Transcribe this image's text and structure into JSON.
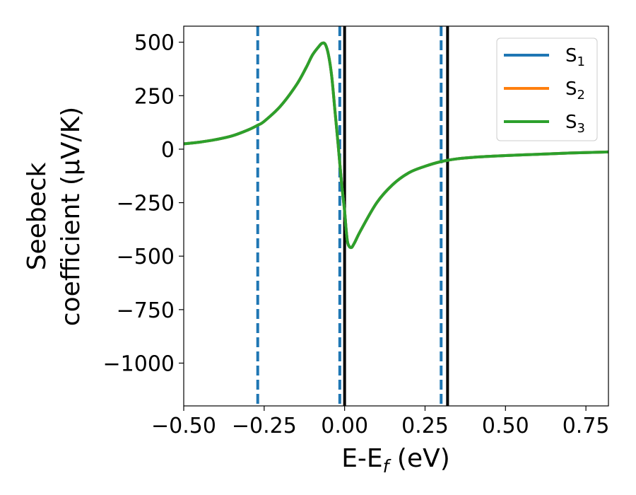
{
  "chart_data": {
    "type": "line",
    "xlabel": "E-E",
    "xlabel_sub": "f",
    "xlabel_unit": " (eV)",
    "ylabel_line1": "Seebeck",
    "ylabel_line2": "coefficient  (μV/K)",
    "xlim": [
      -0.5,
      0.82
    ],
    "ylim": [
      -1200,
      575
    ],
    "xticks": [
      -0.5,
      -0.25,
      0.0,
      0.25,
      0.5,
      0.75
    ],
    "xtick_labels": [
      "−0.50",
      "−0.25",
      "0.00",
      "0.25",
      "0.50",
      "0.75"
    ],
    "yticks": [
      500,
      250,
      0,
      -250,
      -500,
      -750,
      -1000
    ],
    "ytick_labels": [
      "500",
      "250",
      "0",
      "−250",
      "−500",
      "−750",
      "−1000"
    ],
    "grid": false,
    "legend_position": "top-right",
    "x": [
      -0.5,
      -0.45,
      -0.4,
      -0.35,
      -0.3,
      -0.27,
      -0.25,
      -0.2,
      -0.15,
      -0.12,
      -0.1,
      -0.08,
      -0.07,
      -0.06,
      -0.05,
      -0.04,
      -0.03,
      -0.02,
      -0.01,
      0.0,
      0.005,
      0.01,
      0.02,
      0.03,
      0.05,
      0.1,
      0.15,
      0.2,
      0.25,
      0.3,
      0.35,
      0.4,
      0.5,
      0.6,
      0.7,
      0.82
    ],
    "series": [
      {
        "name": "S",
        "sub": "1",
        "color": "#1f77b4",
        "values": [
          25,
          33,
          45,
          62,
          90,
          112,
          130,
          200,
          300,
          380,
          440,
          480,
          495,
          490,
          440,
          340,
          180,
          20,
          -150,
          -290,
          -380,
          -440,
          -460,
          -440,
          -380,
          -250,
          -165,
          -110,
          -80,
          -58,
          -45,
          -38,
          -30,
          -24,
          -18,
          -13
        ]
      },
      {
        "name": "S",
        "sub": "2",
        "color": "#ff7f0e",
        "values": [
          25,
          33,
          45,
          62,
          90,
          112,
          130,
          200,
          300,
          380,
          440,
          480,
          495,
          490,
          440,
          340,
          180,
          20,
          -150,
          -290,
          -380,
          -440,
          -460,
          -440,
          -380,
          -250,
          -165,
          -110,
          -80,
          -58,
          -45,
          -38,
          -30,
          -24,
          -18,
          -13
        ]
      },
      {
        "name": "S",
        "sub": "3",
        "color": "#2ca02c",
        "values": [
          25,
          33,
          45,
          62,
          90,
          112,
          130,
          200,
          300,
          380,
          440,
          480,
          495,
          490,
          440,
          340,
          180,
          20,
          -150,
          -290,
          -380,
          -440,
          -460,
          -440,
          -380,
          -250,
          -165,
          -110,
          -80,
          -58,
          -45,
          -38,
          -30,
          -24,
          -18,
          -13
        ]
      }
    ],
    "vlines": [
      {
        "x": -0.27,
        "style": "dashed",
        "color": "#1f77b4"
      },
      {
        "x": -0.015,
        "style": "dashed",
        "color": "#1f77b4"
      },
      {
        "x": 0.3,
        "style": "dashed",
        "color": "#1f77b4"
      },
      {
        "x": 0.0,
        "style": "solid",
        "color": "#000000"
      },
      {
        "x": 0.32,
        "style": "solid",
        "color": "#000000"
      }
    ]
  }
}
